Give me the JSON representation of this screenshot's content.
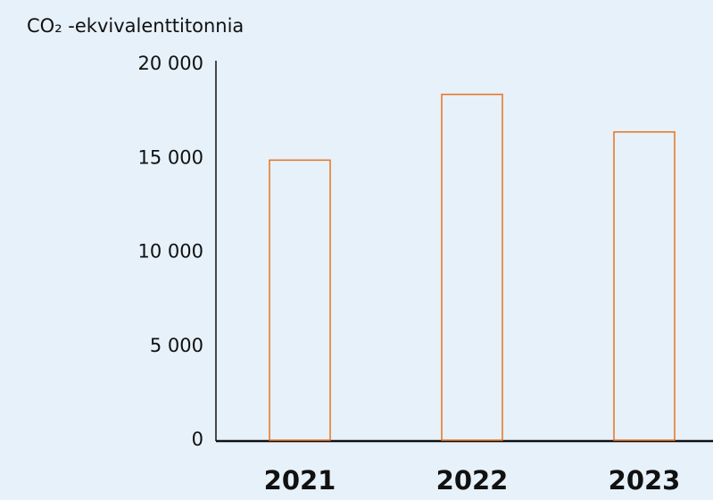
{
  "chart_data": {
    "type": "bar",
    "y_label": "CO₂ -ekvivalenttitonnia",
    "categories": [
      "2021",
      "2022",
      "2023"
    ],
    "values": [
      14900,
      18400,
      16400
    ],
    "color": "#e8731e",
    "ylim": [
      0,
      20000
    ],
    "yticks": [
      0,
      {
        "value": 5000,
        "label": "5 000"
      },
      {
        "value": 10000,
        "label": "10 000"
      },
      {
        "value": 15000,
        "label": "15 000"
      },
      {
        "value": 20000,
        "label": "20 000"
      }
    ],
    "grid": false
  }
}
